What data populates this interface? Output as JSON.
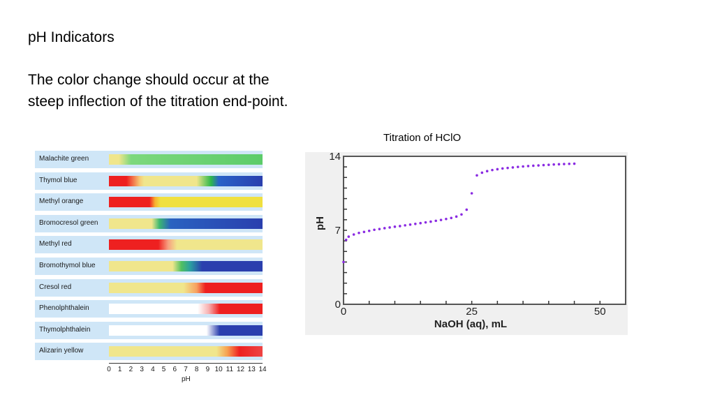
{
  "slide": {
    "heading": "pH Indicators",
    "body_line1": "The color change should occur at the",
    "body_line2": "steep inflection of the titration end-point.",
    "titration_title": "Titration of HClO"
  },
  "chart_data": [
    {
      "type": "table",
      "title": "",
      "xlabel": "pH",
      "ticks": [
        "0",
        "1",
        "2",
        "3",
        "4",
        "5",
        "6",
        "7",
        "8",
        "9",
        "10",
        "11",
        "12",
        "13",
        "14"
      ],
      "xlim": [
        0,
        14
      ],
      "indicators": [
        {
          "name": "Malachite green",
          "stops": [
            [
              0,
              "#f0e68c"
            ],
            [
              0.9,
              "#f0e68c"
            ],
            [
              2,
              "#7dd87d"
            ],
            [
              14,
              "#5ccc6a"
            ]
          ]
        },
        {
          "name": "Thymol blue",
          "stops": [
            [
              0,
              "#ee2020"
            ],
            [
              1.6,
              "#ee2020"
            ],
            [
              2.8,
              "#f7c874"
            ],
            [
              3.2,
              "#f0e68c"
            ],
            [
              8,
              "#f0e68c"
            ],
            [
              9.3,
              "#2eb84a"
            ],
            [
              10,
              "#2a63c8"
            ],
            [
              14,
              "#2a3fae"
            ]
          ]
        },
        {
          "name": "Methyl orange",
          "stops": [
            [
              0,
              "#ee2020"
            ],
            [
              3.7,
              "#ee2020"
            ],
            [
              4.2,
              "#f7b030"
            ],
            [
              4.7,
              "#f0e040"
            ],
            [
              14,
              "#f0e040"
            ]
          ]
        },
        {
          "name": "Bromocresol green",
          "stops": [
            [
              0,
              "#f0e68c"
            ],
            [
              3.9,
              "#f0e68c"
            ],
            [
              4.6,
              "#3cb870"
            ],
            [
              5.6,
              "#2a62c0"
            ],
            [
              14,
              "#2a3fae"
            ]
          ]
        },
        {
          "name": "Methyl red",
          "stops": [
            [
              0,
              "#ee2020"
            ],
            [
              4.5,
              "#ee2020"
            ],
            [
              5.4,
              "#f7a080"
            ],
            [
              6.2,
              "#f0e68c"
            ],
            [
              14,
              "#f0e68c"
            ]
          ]
        },
        {
          "name": "Bromothymol blue",
          "stops": [
            [
              0,
              "#f0e68c"
            ],
            [
              5.8,
              "#f0e68c"
            ],
            [
              6.6,
              "#50c060"
            ],
            [
              7.4,
              "#2aa0a0"
            ],
            [
              8.5,
              "#2a3fae"
            ],
            [
              14,
              "#2a3fae"
            ]
          ]
        },
        {
          "name": "Cresol red",
          "stops": [
            [
              0,
              "#f0e68c"
            ],
            [
              6.8,
              "#f0e68c"
            ],
            [
              8.0,
              "#f7a060"
            ],
            [
              8.8,
              "#ee2020"
            ],
            [
              14,
              "#ee2020"
            ]
          ]
        },
        {
          "name": "Phenolphthalein",
          "stops": [
            [
              0,
              "#ffffff"
            ],
            [
              8.1,
              "#ffffff"
            ],
            [
              9.1,
              "#f7b0b0"
            ],
            [
              10.1,
              "#ee2020"
            ],
            [
              14,
              "#ee2020"
            ]
          ]
        },
        {
          "name": "Thymolphthalein",
          "stops": [
            [
              0,
              "#ffffff"
            ],
            [
              8.9,
              "#ffffff"
            ],
            [
              10.1,
              "#2a3fae"
            ],
            [
              14,
              "#2a3fae"
            ]
          ]
        },
        {
          "name": "Alizarin yellow",
          "stops": [
            [
              0,
              "#f0e68c"
            ],
            [
              9.8,
              "#f0e68c"
            ],
            [
              10.8,
              "#f7a050"
            ],
            [
              11.9,
              "#ee2020"
            ],
            [
              14,
              "#ee4444"
            ]
          ]
        }
      ]
    },
    {
      "type": "scatter",
      "title": "Titration of HClO",
      "xlabel": "NaOH (aq), mL",
      "ylabel": "pH",
      "xlim": [
        0,
        55
      ],
      "ylim": [
        0,
        14
      ],
      "xticks": [
        0,
        25,
        50
      ],
      "yticks": [
        0,
        7,
        14
      ],
      "color": "#8a2be2",
      "x": [
        0,
        0.5,
        1,
        2,
        3,
        4,
        5,
        6,
        7,
        8,
        9,
        10,
        11,
        12,
        13,
        14,
        15,
        16,
        17,
        18,
        19,
        20,
        21,
        22,
        23,
        24,
        25,
        26,
        27,
        28,
        29,
        30,
        31,
        32,
        33,
        34,
        35,
        36,
        37,
        38,
        39,
        40,
        41,
        42,
        43,
        44,
        45
      ],
      "y": [
        4.0,
        6.1,
        6.4,
        6.6,
        6.75,
        6.85,
        6.95,
        7.05,
        7.12,
        7.2,
        7.27,
        7.34,
        7.4,
        7.47,
        7.54,
        7.61,
        7.68,
        7.75,
        7.82,
        7.9,
        7.98,
        8.07,
        8.17,
        8.3,
        8.5,
        8.95,
        10.5,
        12.2,
        12.45,
        12.6,
        12.7,
        12.78,
        12.85,
        12.9,
        12.95,
        13.0,
        13.04,
        13.08,
        13.11,
        13.14,
        13.17,
        13.2,
        13.23,
        13.25,
        13.27,
        13.29,
        13.3
      ]
    }
  ]
}
